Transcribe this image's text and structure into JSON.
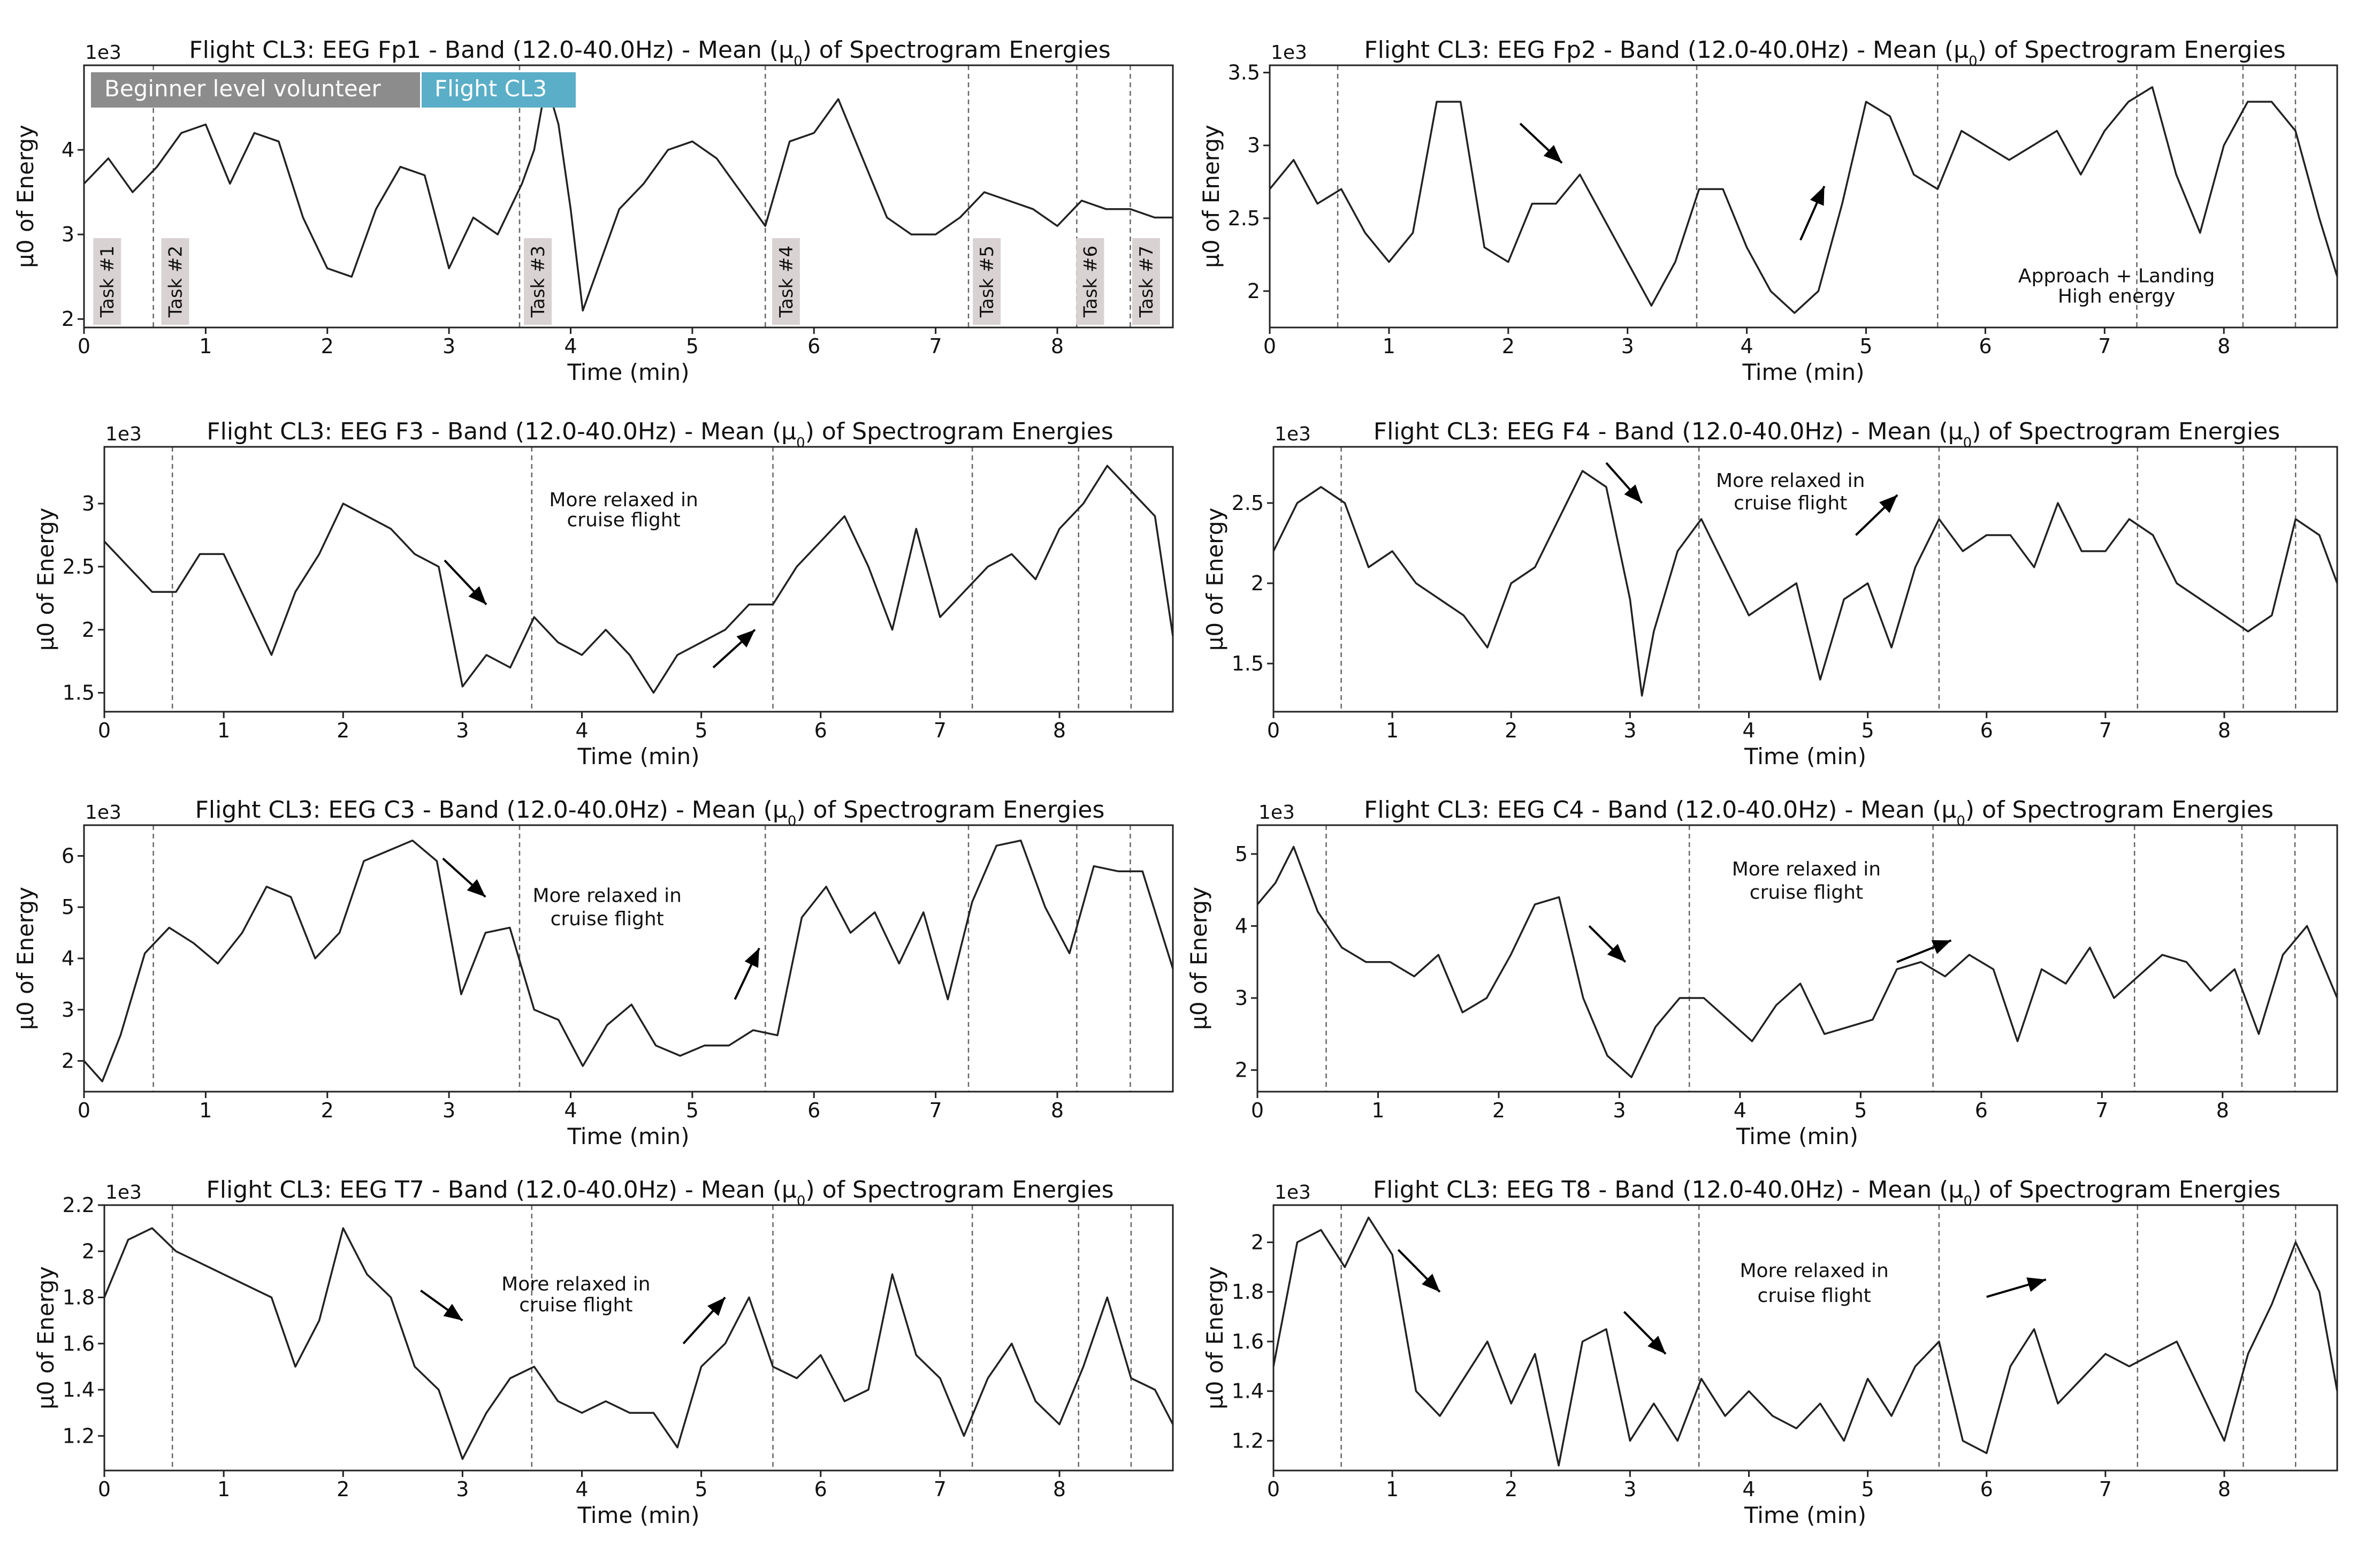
{
  "figure": {
    "legend": {
      "beginner_label": "Beginner level volunteer",
      "flight_label": "Flight CL3",
      "beginner_color": "#8c8c8c",
      "flight_color": "#5aaec7"
    },
    "task_labels": [
      "Task #1",
      "Task #2",
      "Task #3",
      "Task #4",
      "Task #5",
      "Task #6",
      "Task #7"
    ],
    "task_boundaries_min": [
      0.57,
      3.58,
      5.6,
      7.27,
      8.16,
      8.6
    ]
  },
  "chart_data": [
    {
      "type": "line",
      "id": "fp1",
      "title": "Flight CL3: EEG Fp1  - Band (12.0-40.0Hz) - Mean (μ0) of Spectrogram Energies",
      "xlabel": "Time (min)",
      "ylabel": "μ0 of Energy",
      "scale_label": "1e3",
      "xlim": [
        0,
        8.95
      ],
      "ylim": [
        1.9,
        5.0
      ],
      "xticks": [
        0,
        1,
        2,
        3,
        4,
        5,
        6,
        7,
        8
      ],
      "yticks": [
        2,
        3,
        4
      ],
      "x": [
        0,
        0.2,
        0.4,
        0.6,
        0.8,
        1.0,
        1.2,
        1.4,
        1.6,
        1.8,
        2.0,
        2.2,
        2.4,
        2.6,
        2.8,
        3.0,
        3.2,
        3.4,
        3.6,
        3.7,
        3.8,
        3.9,
        4.0,
        4.1,
        4.2,
        4.4,
        4.6,
        4.8,
        5.0,
        5.2,
        5.4,
        5.6,
        5.8,
        6.0,
        6.2,
        6.4,
        6.6,
        6.8,
        7.0,
        7.2,
        7.4,
        7.6,
        7.8,
        8.0,
        8.2,
        8.4,
        8.6,
        8.8,
        8.95
      ],
      "values": [
        3.6,
        3.9,
        3.5,
        3.8,
        4.2,
        4.3,
        3.6,
        4.2,
        4.1,
        3.2,
        2.6,
        2.5,
        3.3,
        3.8,
        3.7,
        2.6,
        3.2,
        3.0,
        3.6,
        4.0,
        4.8,
        4.3,
        3.3,
        2.1,
        2.5,
        3.3,
        3.6,
        4.0,
        4.1,
        3.9,
        3.5,
        3.1,
        4.1,
        4.2,
        4.6,
        3.9,
        3.2,
        3.0,
        3.0,
        3.2,
        3.5,
        3.4,
        3.3,
        3.1,
        3.4,
        3.3,
        3.3,
        3.2,
        3.2
      ],
      "annotations": []
    },
    {
      "type": "line",
      "id": "fp2",
      "title": "Flight CL3: EEG Fp2  - Band (12.0-40.0Hz) - Mean (μ0) of Spectrogram Energies",
      "xlabel": "Time (min)",
      "ylabel": "μ0 of Energy",
      "scale_label": "1e3",
      "xlim": [
        0,
        8.95
      ],
      "ylim": [
        1.75,
        3.55
      ],
      "xticks": [
        0,
        1,
        2,
        3,
        4,
        5,
        6,
        7,
        8
      ],
      "yticks": [
        2.0,
        2.5,
        3.0,
        3.5
      ],
      "x": [
        0,
        0.2,
        0.4,
        0.6,
        0.8,
        1.0,
        1.2,
        1.4,
        1.6,
        1.8,
        2.0,
        2.2,
        2.4,
        2.6,
        2.8,
        3.0,
        3.2,
        3.4,
        3.6,
        3.8,
        4.0,
        4.2,
        4.4,
        4.6,
        4.8,
        5.0,
        5.2,
        5.4,
        5.6,
        5.8,
        6.0,
        6.2,
        6.4,
        6.6,
        6.8,
        7.0,
        7.2,
        7.4,
        7.6,
        7.8,
        8.0,
        8.2,
        8.4,
        8.6,
        8.8,
        8.95
      ],
      "values": [
        2.7,
        2.9,
        2.6,
        2.7,
        2.4,
        2.2,
        2.4,
        3.3,
        3.3,
        2.3,
        2.2,
        2.6,
        2.6,
        2.8,
        2.5,
        2.2,
        1.9,
        2.2,
        2.7,
        2.7,
        2.3,
        2.0,
        1.85,
        2.0,
        2.6,
        3.3,
        3.2,
        2.8,
        2.7,
        3.1,
        3.0,
        2.9,
        3.0,
        3.1,
        2.8,
        3.1,
        3.3,
        3.4,
        2.8,
        2.4,
        3.0,
        3.3,
        3.3,
        3.1,
        2.5,
        2.1
      ],
      "annotations": [
        {
          "kind": "arrow",
          "from": [
            2.1,
            3.15
          ],
          "to": [
            2.45,
            2.88
          ]
        },
        {
          "kind": "arrow",
          "from": [
            4.45,
            2.35
          ],
          "to": [
            4.65,
            2.72
          ]
        },
        {
          "kind": "text",
          "x": 7.1,
          "y": 2.06,
          "text": "Approach + Landing"
        },
        {
          "kind": "text",
          "x": 7.1,
          "y": 1.92,
          "text": "High energy"
        }
      ]
    },
    {
      "type": "line",
      "id": "f3",
      "title": "Flight CL3: EEG F3  - Band (12.0-40.0Hz) - Mean (μ0) of Spectrogram Energies",
      "xlabel": "Time (min)",
      "ylabel": "μ0 of Energy",
      "scale_label": "1e3",
      "xlim": [
        0,
        8.95
      ],
      "ylim": [
        1.35,
        3.45
      ],
      "xticks": [
        0,
        1,
        2,
        3,
        4,
        5,
        6,
        7,
        8
      ],
      "yticks": [
        1.5,
        2.0,
        2.5,
        3.0
      ],
      "x": [
        0,
        0.2,
        0.4,
        0.6,
        0.8,
        1.0,
        1.2,
        1.4,
        1.6,
        1.8,
        2.0,
        2.2,
        2.4,
        2.6,
        2.8,
        3.0,
        3.2,
        3.4,
        3.6,
        3.8,
        4.0,
        4.2,
        4.4,
        4.6,
        4.8,
        5.0,
        5.2,
        5.4,
        5.6,
        5.8,
        6.0,
        6.2,
        6.4,
        6.6,
        6.8,
        7.0,
        7.2,
        7.4,
        7.6,
        7.8,
        8.0,
        8.2,
        8.4,
        8.6,
        8.8,
        8.95
      ],
      "values": [
        2.7,
        2.5,
        2.3,
        2.3,
        2.6,
        2.6,
        2.2,
        1.8,
        2.3,
        2.6,
        3.0,
        2.9,
        2.8,
        2.6,
        2.5,
        1.55,
        1.8,
        1.7,
        2.1,
        1.9,
        1.8,
        2.0,
        1.8,
        1.5,
        1.8,
        1.9,
        2.0,
        2.2,
        2.2,
        2.5,
        2.7,
        2.9,
        2.5,
        2.0,
        2.8,
        2.1,
        2.3,
        2.5,
        2.6,
        2.4,
        2.8,
        3.0,
        3.3,
        3.1,
        2.9,
        1.95
      ],
      "annotations": [
        {
          "kind": "arrow",
          "from": [
            2.85,
            2.55
          ],
          "to": [
            3.2,
            2.2
          ]
        },
        {
          "kind": "arrow",
          "from": [
            5.1,
            1.7
          ],
          "to": [
            5.45,
            2.0
          ]
        },
        {
          "kind": "text",
          "x": 4.35,
          "y": 2.98,
          "text": "More relaxed in"
        },
        {
          "kind": "text",
          "x": 4.35,
          "y": 2.82,
          "text": "cruise flight"
        }
      ]
    },
    {
      "type": "line",
      "id": "f4",
      "title": "Flight CL3: EEG F4  - Band (12.0-40.0Hz) - Mean (μ0) of Spectrogram Energies",
      "xlabel": "Time (min)",
      "ylabel": "μ0 of Energy",
      "scale_label": "1e3",
      "xlim": [
        0,
        8.95
      ],
      "ylim": [
        1.2,
        2.85
      ],
      "xticks": [
        0,
        1,
        2,
        3,
        4,
        5,
        6,
        7,
        8
      ],
      "yticks": [
        1.5,
        2.0,
        2.5
      ],
      "x": [
        0,
        0.2,
        0.4,
        0.6,
        0.8,
        1.0,
        1.2,
        1.4,
        1.6,
        1.8,
        2.0,
        2.2,
        2.4,
        2.6,
        2.8,
        3.0,
        3.1,
        3.2,
        3.4,
        3.6,
        3.8,
        4.0,
        4.2,
        4.4,
        4.6,
        4.8,
        5.0,
        5.2,
        5.4,
        5.6,
        5.8,
        6.0,
        6.2,
        6.4,
        6.6,
        6.8,
        7.0,
        7.2,
        7.4,
        7.6,
        7.8,
        8.0,
        8.2,
        8.4,
        8.6,
        8.8,
        8.95
      ],
      "values": [
        2.2,
        2.5,
        2.6,
        2.5,
        2.1,
        2.2,
        2.0,
        1.9,
        1.8,
        1.6,
        2.0,
        2.1,
        2.4,
        2.7,
        2.6,
        1.9,
        1.3,
        1.7,
        2.2,
        2.4,
        2.1,
        1.8,
        1.9,
        2.0,
        1.4,
        1.9,
        2.0,
        1.6,
        2.1,
        2.4,
        2.2,
        2.3,
        2.3,
        2.1,
        2.5,
        2.2,
        2.2,
        2.4,
        2.3,
        2.0,
        1.9,
        1.8,
        1.7,
        1.8,
        2.4,
        2.3,
        2.0
      ],
      "annotations": [
        {
          "kind": "arrow",
          "from": [
            2.8,
            2.75
          ],
          "to": [
            3.1,
            2.5
          ]
        },
        {
          "kind": "arrow",
          "from": [
            4.9,
            2.3
          ],
          "to": [
            5.25,
            2.55
          ]
        },
        {
          "kind": "text",
          "x": 4.35,
          "y": 2.6,
          "text": "More relaxed in"
        },
        {
          "kind": "text",
          "x": 4.35,
          "y": 2.46,
          "text": "cruise flight"
        }
      ]
    },
    {
      "type": "line",
      "id": "c3",
      "title": "Flight CL3: EEG C3  - Band (12.0-40.0Hz) - Mean (μ0) of Spectrogram Energies",
      "xlabel": "Time (min)",
      "ylabel": "μ0 of Energy",
      "scale_label": "1e3",
      "xlim": [
        0,
        8.95
      ],
      "ylim": [
        1.4,
        6.6
      ],
      "xticks": [
        0,
        1,
        2,
        3,
        4,
        5,
        6,
        7,
        8
      ],
      "yticks": [
        2,
        3,
        4,
        5,
        6
      ],
      "x": [
        0,
        0.15,
        0.3,
        0.5,
        0.7,
        0.9,
        1.1,
        1.3,
        1.5,
        1.7,
        1.9,
        2.1,
        2.3,
        2.5,
        2.7,
        2.9,
        3.1,
        3.3,
        3.5,
        3.7,
        3.9,
        4.1,
        4.3,
        4.5,
        4.7,
        4.9,
        5.1,
        5.3,
        5.5,
        5.7,
        5.9,
        6.1,
        6.3,
        6.5,
        6.7,
        6.9,
        7.1,
        7.3,
        7.5,
        7.7,
        7.9,
        8.1,
        8.3,
        8.5,
        8.7,
        8.95
      ],
      "values": [
        2.0,
        1.6,
        2.5,
        4.1,
        4.6,
        4.3,
        3.9,
        4.5,
        5.4,
        5.2,
        4.0,
        4.5,
        5.9,
        6.1,
        6.3,
        5.9,
        3.3,
        4.5,
        4.6,
        3.0,
        2.8,
        1.9,
        2.7,
        3.1,
        2.3,
        2.1,
        2.3,
        2.3,
        2.6,
        2.5,
        4.8,
        5.4,
        4.5,
        4.9,
        3.9,
        4.9,
        3.2,
        5.1,
        6.2,
        6.3,
        5.0,
        4.1,
        5.8,
        5.7,
        5.7,
        3.8
      ],
      "annotations": [
        {
          "kind": "arrow",
          "from": [
            2.95,
            5.95
          ],
          "to": [
            3.3,
            5.2
          ]
        },
        {
          "kind": "arrow",
          "from": [
            5.35,
            3.2
          ],
          "to": [
            5.55,
            4.2
          ]
        },
        {
          "kind": "text",
          "x": 4.3,
          "y": 5.1,
          "text": "More relaxed in"
        },
        {
          "kind": "text",
          "x": 4.3,
          "y": 4.65,
          "text": "cruise flight"
        }
      ]
    },
    {
      "type": "line",
      "id": "c4",
      "title": "Flight CL3: EEG C4  - Band (12.0-40.0Hz) - Mean (μ0) of Spectrogram Energies",
      "xlabel": "Time (min)",
      "ylabel": "μ0 of Energy",
      "scale_label": "1e3",
      "xlim": [
        0,
        8.95
      ],
      "ylim": [
        1.7,
        5.4
      ],
      "xticks": [
        0,
        1,
        2,
        3,
        4,
        5,
        6,
        7,
        8
      ],
      "yticks": [
        2,
        3,
        4,
        5
      ],
      "x": [
        0,
        0.15,
        0.3,
        0.5,
        0.7,
        0.9,
        1.1,
        1.3,
        1.5,
        1.7,
        1.9,
        2.1,
        2.3,
        2.5,
        2.7,
        2.9,
        3.1,
        3.3,
        3.5,
        3.7,
        3.9,
        4.1,
        4.3,
        4.5,
        4.7,
        4.9,
        5.1,
        5.3,
        5.5,
        5.7,
        5.9,
        6.1,
        6.3,
        6.5,
        6.7,
        6.9,
        7.1,
        7.3,
        7.5,
        7.7,
        7.9,
        8.1,
        8.3,
        8.5,
        8.7,
        8.95
      ],
      "values": [
        4.3,
        4.6,
        5.1,
        4.2,
        3.7,
        3.5,
        3.5,
        3.3,
        3.6,
        2.8,
        3.0,
        3.6,
        4.3,
        4.4,
        3.0,
        2.2,
        1.9,
        2.6,
        3.0,
        3.0,
        2.7,
        2.4,
        2.9,
        3.2,
        2.5,
        2.6,
        2.7,
        3.4,
        3.5,
        3.3,
        3.6,
        3.4,
        2.4,
        3.4,
        3.2,
        3.7,
        3.0,
        3.3,
        3.6,
        3.5,
        3.1,
        3.4,
        2.5,
        3.6,
        4.0,
        3.0
      ],
      "annotations": [
        {
          "kind": "arrow",
          "from": [
            2.75,
            4.0
          ],
          "to": [
            3.05,
            3.5
          ]
        },
        {
          "kind": "arrow",
          "from": [
            5.3,
            3.5
          ],
          "to": [
            5.75,
            3.8
          ]
        },
        {
          "kind": "text",
          "x": 4.55,
          "y": 4.7,
          "text": "More relaxed in"
        },
        {
          "kind": "text",
          "x": 4.55,
          "y": 4.38,
          "text": "cruise flight"
        }
      ]
    },
    {
      "type": "line",
      "id": "t7",
      "title": "Flight CL3: EEG T7  - Band (12.0-40.0Hz) - Mean (μ0) of Spectrogram Energies",
      "xlabel": "Time (min)",
      "ylabel": "μ0 of Energy",
      "scale_label": "1e3",
      "xlim": [
        0,
        8.95
      ],
      "ylim": [
        1.05,
        2.2
      ],
      "xticks": [
        0,
        1,
        2,
        3,
        4,
        5,
        6,
        7,
        8
      ],
      "yticks": [
        1.2,
        1.4,
        1.6,
        1.8,
        2.0,
        2.2
      ],
      "x": [
        0,
        0.2,
        0.4,
        0.6,
        0.8,
        1.0,
        1.2,
        1.4,
        1.6,
        1.8,
        2.0,
        2.2,
        2.4,
        2.6,
        2.8,
        3.0,
        3.2,
        3.4,
        3.6,
        3.8,
        4.0,
        4.2,
        4.4,
        4.6,
        4.8,
        5.0,
        5.2,
        5.4,
        5.6,
        5.8,
        6.0,
        6.2,
        6.4,
        6.6,
        6.8,
        7.0,
        7.2,
        7.4,
        7.6,
        7.8,
        8.0,
        8.2,
        8.4,
        8.6,
        8.8,
        8.95
      ],
      "values": [
        1.8,
        2.05,
        2.1,
        2.0,
        1.95,
        1.9,
        1.85,
        1.8,
        1.5,
        1.7,
        2.1,
        1.9,
        1.8,
        1.5,
        1.4,
        1.1,
        1.3,
        1.45,
        1.5,
        1.35,
        1.3,
        1.35,
        1.3,
        1.3,
        1.15,
        1.5,
        1.6,
        1.8,
        1.5,
        1.45,
        1.55,
        1.35,
        1.4,
        1.9,
        1.55,
        1.45,
        1.2,
        1.45,
        1.6,
        1.35,
        1.25,
        1.5,
        1.8,
        1.45,
        1.4,
        1.25
      ],
      "annotations": [
        {
          "kind": "arrow",
          "from": [
            2.65,
            1.83
          ],
          "to": [
            3.0,
            1.7
          ]
        },
        {
          "kind": "arrow",
          "from": [
            4.85,
            1.6
          ],
          "to": [
            5.2,
            1.8
          ]
        },
        {
          "kind": "text",
          "x": 3.95,
          "y": 1.83,
          "text": "More relaxed in"
        },
        {
          "kind": "text",
          "x": 3.95,
          "y": 1.74,
          "text": "cruise flight"
        }
      ]
    },
    {
      "type": "line",
      "id": "t8",
      "title": "Flight CL3: EEG T8  - Band (12.0-40.0Hz) - Mean (μ0) of Spectrogram Energies",
      "xlabel": "Time (min)",
      "ylabel": "μ0 of Energy",
      "scale_label": "1e3",
      "xlim": [
        0,
        8.95
      ],
      "ylim": [
        1.08,
        2.15
      ],
      "xticks": [
        0,
        1,
        2,
        3,
        4,
        5,
        6,
        7,
        8
      ],
      "yticks": [
        1.2,
        1.4,
        1.6,
        1.8,
        2.0
      ],
      "x": [
        0,
        0.2,
        0.4,
        0.6,
        0.8,
        1.0,
        1.2,
        1.4,
        1.6,
        1.8,
        2.0,
        2.2,
        2.4,
        2.6,
        2.8,
        3.0,
        3.2,
        3.4,
        3.6,
        3.8,
        4.0,
        4.2,
        4.4,
        4.6,
        4.8,
        5.0,
        5.2,
        5.4,
        5.6,
        5.8,
        6.0,
        6.2,
        6.4,
        6.6,
        6.8,
        7.0,
        7.2,
        7.4,
        7.6,
        7.8,
        8.0,
        8.2,
        8.4,
        8.6,
        8.8,
        8.95
      ],
      "values": [
        1.5,
        2.0,
        2.05,
        1.9,
        2.1,
        1.95,
        1.4,
        1.3,
        1.45,
        1.6,
        1.35,
        1.55,
        1.1,
        1.6,
        1.65,
        1.2,
        1.35,
        1.2,
        1.45,
        1.3,
        1.4,
        1.3,
        1.25,
        1.35,
        1.2,
        1.45,
        1.3,
        1.5,
        1.6,
        1.2,
        1.15,
        1.5,
        1.65,
        1.35,
        1.45,
        1.55,
        1.5,
        1.55,
        1.6,
        1.4,
        1.2,
        1.55,
        1.75,
        2.0,
        1.8,
        1.4
      ],
      "annotations": [
        {
          "kind": "arrow",
          "from": [
            1.05,
            1.97
          ],
          "to": [
            1.4,
            1.8
          ]
        },
        {
          "kind": "arrow",
          "from": [
            2.95,
            1.72
          ],
          "to": [
            3.3,
            1.55
          ]
        },
        {
          "kind": "arrow",
          "from": [
            6.0,
            1.78
          ],
          "to": [
            6.5,
            1.85
          ]
        },
        {
          "kind": "text",
          "x": 4.55,
          "y": 1.86,
          "text": "More relaxed in"
        },
        {
          "kind": "text",
          "x": 4.55,
          "y": 1.76,
          "text": "cruise flight"
        }
      ]
    }
  ]
}
